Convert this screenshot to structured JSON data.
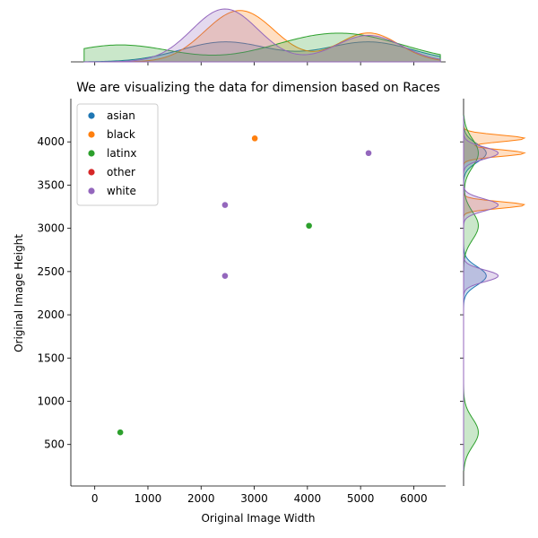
{
  "chart_data": {
    "type": "scatter",
    "title": "We are visualizing the data for dimension based on Races",
    "xlabel": "Original Image Width",
    "ylabel": "Original Image Height",
    "xlim": [
      -450,
      6600
    ],
    "ylim": [
      20,
      4500
    ],
    "xticks": [
      0,
      1000,
      2000,
      3000,
      4000,
      5000,
      6000
    ],
    "yticks": [
      500,
      1000,
      1500,
      2000,
      2500,
      3000,
      3500,
      4000
    ],
    "legend_position": "top-left",
    "grid": false,
    "marginal": "kde",
    "series": [
      {
        "name": "asian",
        "color": "#1f77b4",
        "points": [
          [
            5150,
            3870
          ],
          [
            2450,
            2450
          ]
        ]
      },
      {
        "name": "black",
        "color": "#ff7f0e",
        "points": [
          [
            3010,
            4040
          ],
          [
            5150,
            3870
          ],
          [
            2450,
            3270
          ]
        ]
      },
      {
        "name": "latinx",
        "color": "#2ca02c",
        "points": [
          [
            480,
            640
          ],
          [
            4030,
            3030
          ],
          [
            5150,
            3870
          ]
        ]
      },
      {
        "name": "other",
        "color": "#d62728",
        "points": []
      },
      {
        "name": "white",
        "color": "#9467bd",
        "points": [
          [
            5150,
            3870
          ],
          [
            2450,
            3270
          ],
          [
            2450,
            2450
          ]
        ]
      }
    ]
  }
}
